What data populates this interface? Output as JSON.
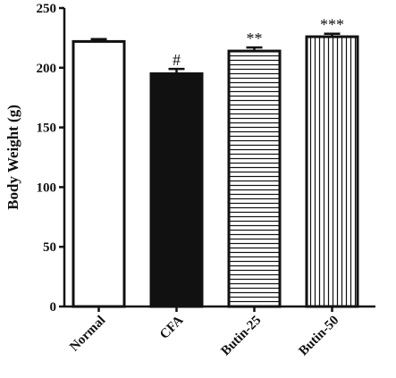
{
  "chart_data": {
    "type": "bar",
    "title": "",
    "xlabel": "",
    "ylabel": "Body Weight (g)",
    "ylim": [
      0,
      250
    ],
    "yticks": [
      0,
      50,
      100,
      150,
      200,
      250
    ],
    "categories": [
      "Normal",
      "CFA",
      "Butin-25",
      "Butin-50"
    ],
    "values": [
      222,
      195,
      214,
      226
    ],
    "errors": [
      2,
      4,
      3,
      2.5
    ],
    "significance": [
      "",
      "#",
      "**",
      "***"
    ],
    "fills": [
      "white",
      "solid-black",
      "horizontal-stripes",
      "vertical-stripes"
    ],
    "colors": {
      "bar_stroke": "#111111",
      "solid_fill": "#111111"
    },
    "grid": false,
    "legend": "none"
  }
}
